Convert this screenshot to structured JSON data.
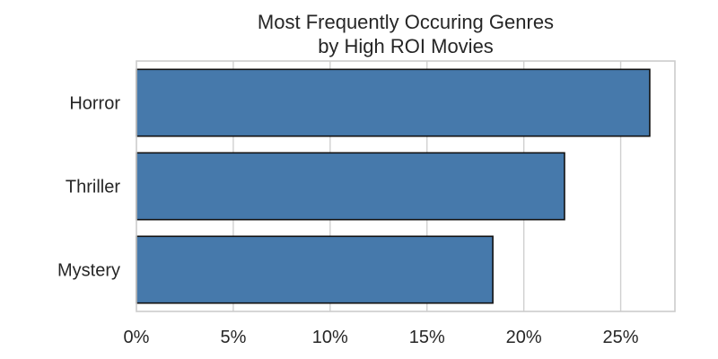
{
  "chart_data": {
    "type": "bar",
    "orientation": "horizontal",
    "title_lines": [
      "Most Frequently Occuring Genres",
      "by High ROI Movies"
    ],
    "categories": [
      "Horror",
      "Thriller",
      "Mystery"
    ],
    "values": [
      26.5,
      22.1,
      18.4
    ],
    "unit": "%",
    "xlabel": "",
    "ylabel": "",
    "xlim": [
      0,
      27.8
    ],
    "xticks": [
      0,
      5,
      10,
      15,
      20,
      25
    ],
    "xtick_labels": [
      "0%",
      "5%",
      "10%",
      "15%",
      "20%",
      "25%"
    ],
    "grid": "vertical",
    "bar_color": "#4679ab",
    "bar_edge_color": "#111111"
  }
}
